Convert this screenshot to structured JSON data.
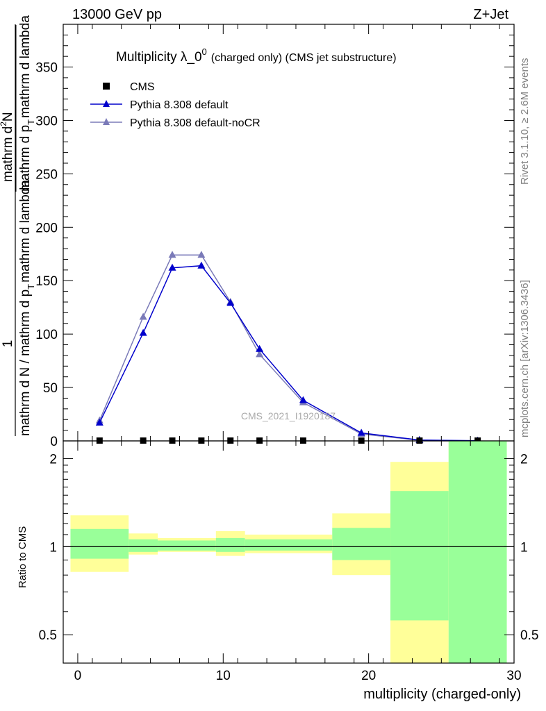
{
  "header": {
    "left": "13000 GeV pp",
    "right": "Z+Jet"
  },
  "side_labels": {
    "rivet": "Rivet 3.1.10, ≥ 2.6M events",
    "mcplots": "mcplots.cern.ch [arXiv:1306.3436]"
  },
  "chart_data": [
    {
      "type": "line",
      "title_main": "Multiplicity λ_0",
      "title_sup": "0",
      "title_rest": "(charged only) (CMS jet substructure)",
      "watermark": "CMS_2021_I1920187",
      "ylabel": {
        "outer_num": "1",
        "outer_den": "mathrm d N / mathrm d p",
        "outer_den_sub": "T",
        "outer_den_rest": "mathrm d lambda",
        "inner_num": "mathrm d",
        "inner_num_sup": "2",
        "inner_num_rest": "N",
        "inner_den": "mathrm d p",
        "inner_den_sub": "T",
        "inner_den_rest": "mathrm d lambda"
      },
      "xlim": [
        -1,
        30
      ],
      "ylim": [
        0,
        390
      ],
      "yticks": [
        0,
        50,
        100,
        150,
        200,
        250,
        300,
        350
      ],
      "ytick_labels": [
        "0",
        "50",
        "100",
        "150",
        "200",
        "250",
        "300",
        "350"
      ],
      "legend_position": "top-left",
      "legend": [
        "CMS",
        "Pythia 8.308 default",
        "Pythia 8.308 default-noCR"
      ],
      "series": [
        {
          "name": "CMS",
          "color": "#000000",
          "marker": "square",
          "x": [
            1.5,
            4.5,
            6.5,
            8.5,
            10.5,
            12.5,
            15.5,
            19.5,
            23.5,
            27.5
          ],
          "y": [
            0.3,
            0.3,
            0.3,
            0.3,
            0.3,
            0.3,
            0.3,
            0.3,
            0.3,
            0.3
          ]
        },
        {
          "name": "Pythia 8.308 default",
          "color": "#0000cc",
          "marker": "triangle",
          "x": [
            1.5,
            4.5,
            6.5,
            8.5,
            10.5,
            12.5,
            15.5,
            19.5,
            23.5,
            27.5
          ],
          "y": [
            17,
            101,
            162,
            164,
            129,
            86,
            38,
            7.5,
            0.8,
            0.1
          ]
        },
        {
          "name": "Pythia 8.308 default-noCR",
          "color": "#7a7ab8",
          "marker": "triangle",
          "x": [
            1.5,
            4.5,
            6.5,
            8.5,
            10.5,
            12.5,
            15.5,
            19.5,
            23.5,
            27.5
          ],
          "y": [
            19,
            116,
            174,
            174,
            130,
            81,
            36,
            6.5,
            0.6,
            0.1
          ]
        }
      ]
    },
    {
      "type": "area",
      "ylabel": "Ratio to CMS",
      "xlabel": "multiplicity (charged-only)",
      "xlim": [
        -1,
        30
      ],
      "ylim": [
        0.4,
        2.3
      ],
      "log_y": true,
      "yticks": [
        0.5,
        1,
        2
      ],
      "ytick_labels": [
        "0.5",
        "1",
        "2"
      ],
      "xticks": [
        0,
        10,
        20,
        30
      ],
      "xtick_labels": [
        "0",
        "10",
        "20",
        "30"
      ],
      "band_colors": {
        "inner": "#99ff99",
        "outer": "#ffff99"
      },
      "bins": [
        {
          "lo": -0.5,
          "hi": 3.5,
          "outer": [
            0.82,
            1.28
          ],
          "inner": [
            0.91,
            1.15
          ]
        },
        {
          "lo": 3.5,
          "hi": 5.5,
          "outer": [
            0.94,
            1.11
          ],
          "inner": [
            0.96,
            1.06
          ]
        },
        {
          "lo": 5.5,
          "hi": 9.5,
          "outer": [
            0.96,
            1.07
          ],
          "inner": [
            0.97,
            1.05
          ]
        },
        {
          "lo": 9.5,
          "hi": 11.5,
          "outer": [
            0.93,
            1.13
          ],
          "inner": [
            0.96,
            1.07
          ]
        },
        {
          "lo": 11.5,
          "hi": 17.5,
          "outer": [
            0.95,
            1.1
          ],
          "inner": [
            0.97,
            1.06
          ]
        },
        {
          "lo": 17.5,
          "hi": 21.5,
          "outer": [
            0.8,
            1.3
          ],
          "inner": [
            0.9,
            1.16
          ]
        },
        {
          "lo": 21.5,
          "hi": 25.5,
          "outer": [
            0.4,
            1.95
          ],
          "inner": [
            0.56,
            1.55
          ]
        },
        {
          "lo": 25.5,
          "hi": 29.5,
          "outer": [
            0.4,
            2.3
          ],
          "inner": [
            0.4,
            2.3
          ]
        }
      ]
    }
  ]
}
